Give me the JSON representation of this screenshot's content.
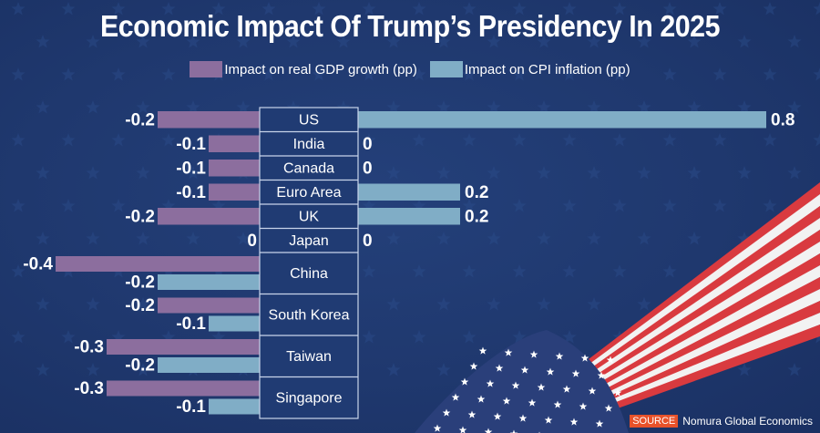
{
  "title": "Economic Impact Of Trump’s Presidency In 2025",
  "source_label": "SOURCE",
  "source_text": "Nomura Global Economics",
  "colors": {
    "gdp": "#8c6e9e",
    "cpi": "#80adc6",
    "background": "#1f386e",
    "text": "#ffffff",
    "source_tag": "#e8522a"
  },
  "chart_data": {
    "type": "bar",
    "orientation": "horizontal-diverging",
    "title": "Economic Impact Of Trump’s Presidency In 2025",
    "xlabel": "",
    "ylabel": "",
    "legend_position": "top-center",
    "grid": false,
    "categories": [
      "US",
      "India",
      "Canada",
      "Euro Area",
      "UK",
      "Japan",
      "China",
      "South Korea",
      "Taiwan",
      "Singapore"
    ],
    "series": [
      {
        "name": "Impact on real GDP growth (pp)",
        "values": [
          -0.2,
          -0.1,
          -0.1,
          -0.1,
          -0.2,
          0,
          -0.4,
          -0.2,
          -0.3,
          -0.3
        ]
      },
      {
        "name": "Impact on CPI inflation (pp)",
        "values": [
          0.8,
          0,
          0,
          0.2,
          0.2,
          0,
          -0.2,
          -0.1,
          -0.2,
          -0.1
        ]
      }
    ],
    "data_labels_gdp": [
      "-0.2",
      "-0.1",
      "-0.1",
      "-0.1",
      "-0.2",
      "0",
      "-0.4",
      "-0.2",
      "-0.3",
      "-0.3"
    ],
    "data_labels_cpi": [
      "0.8",
      "0",
      "0",
      "0.2",
      "0.2",
      "0",
      "-0.2",
      "-0.1",
      "-0.2",
      "-0.1"
    ]
  }
}
